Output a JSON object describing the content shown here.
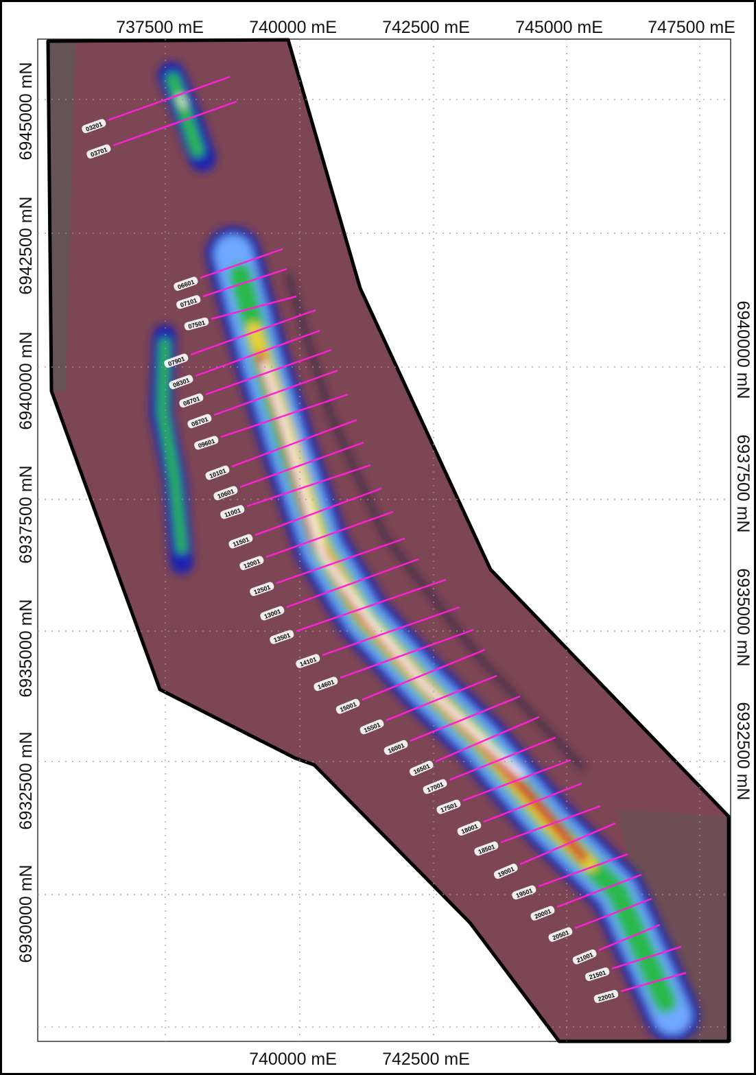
{
  "axes": {
    "top": [
      "737500 mE",
      "740000 mE",
      "742500 mE",
      "745000 mE",
      "747500 mE"
    ],
    "bottom": [
      "740000 mE",
      "742500 mE"
    ],
    "left": [
      "6945000 mN",
      "6942500 mN",
      "6940000 mN",
      "6937500 mN",
      "6935000 mN",
      "6932500 mN",
      "6930000 mN"
    ],
    "right": [
      "6940000 mN",
      "6937500 mN",
      "6935000 mN",
      "6932500 mN"
    ]
  },
  "survey_lines": [
    "03201",
    "03701",
    "06601",
    "07101",
    "07501",
    "07901",
    "08301",
    "08701",
    "08701",
    "09601",
    "10101",
    "10601",
    "11001",
    "11501",
    "12001",
    "12501",
    "13001",
    "13501",
    "14101",
    "14601",
    "15001",
    "15501",
    "16001",
    "16501",
    "17001",
    "17501",
    "18001",
    "18501",
    "19001",
    "19501",
    "20001",
    "20501",
    "21001",
    "21501",
    "22001"
  ]
}
